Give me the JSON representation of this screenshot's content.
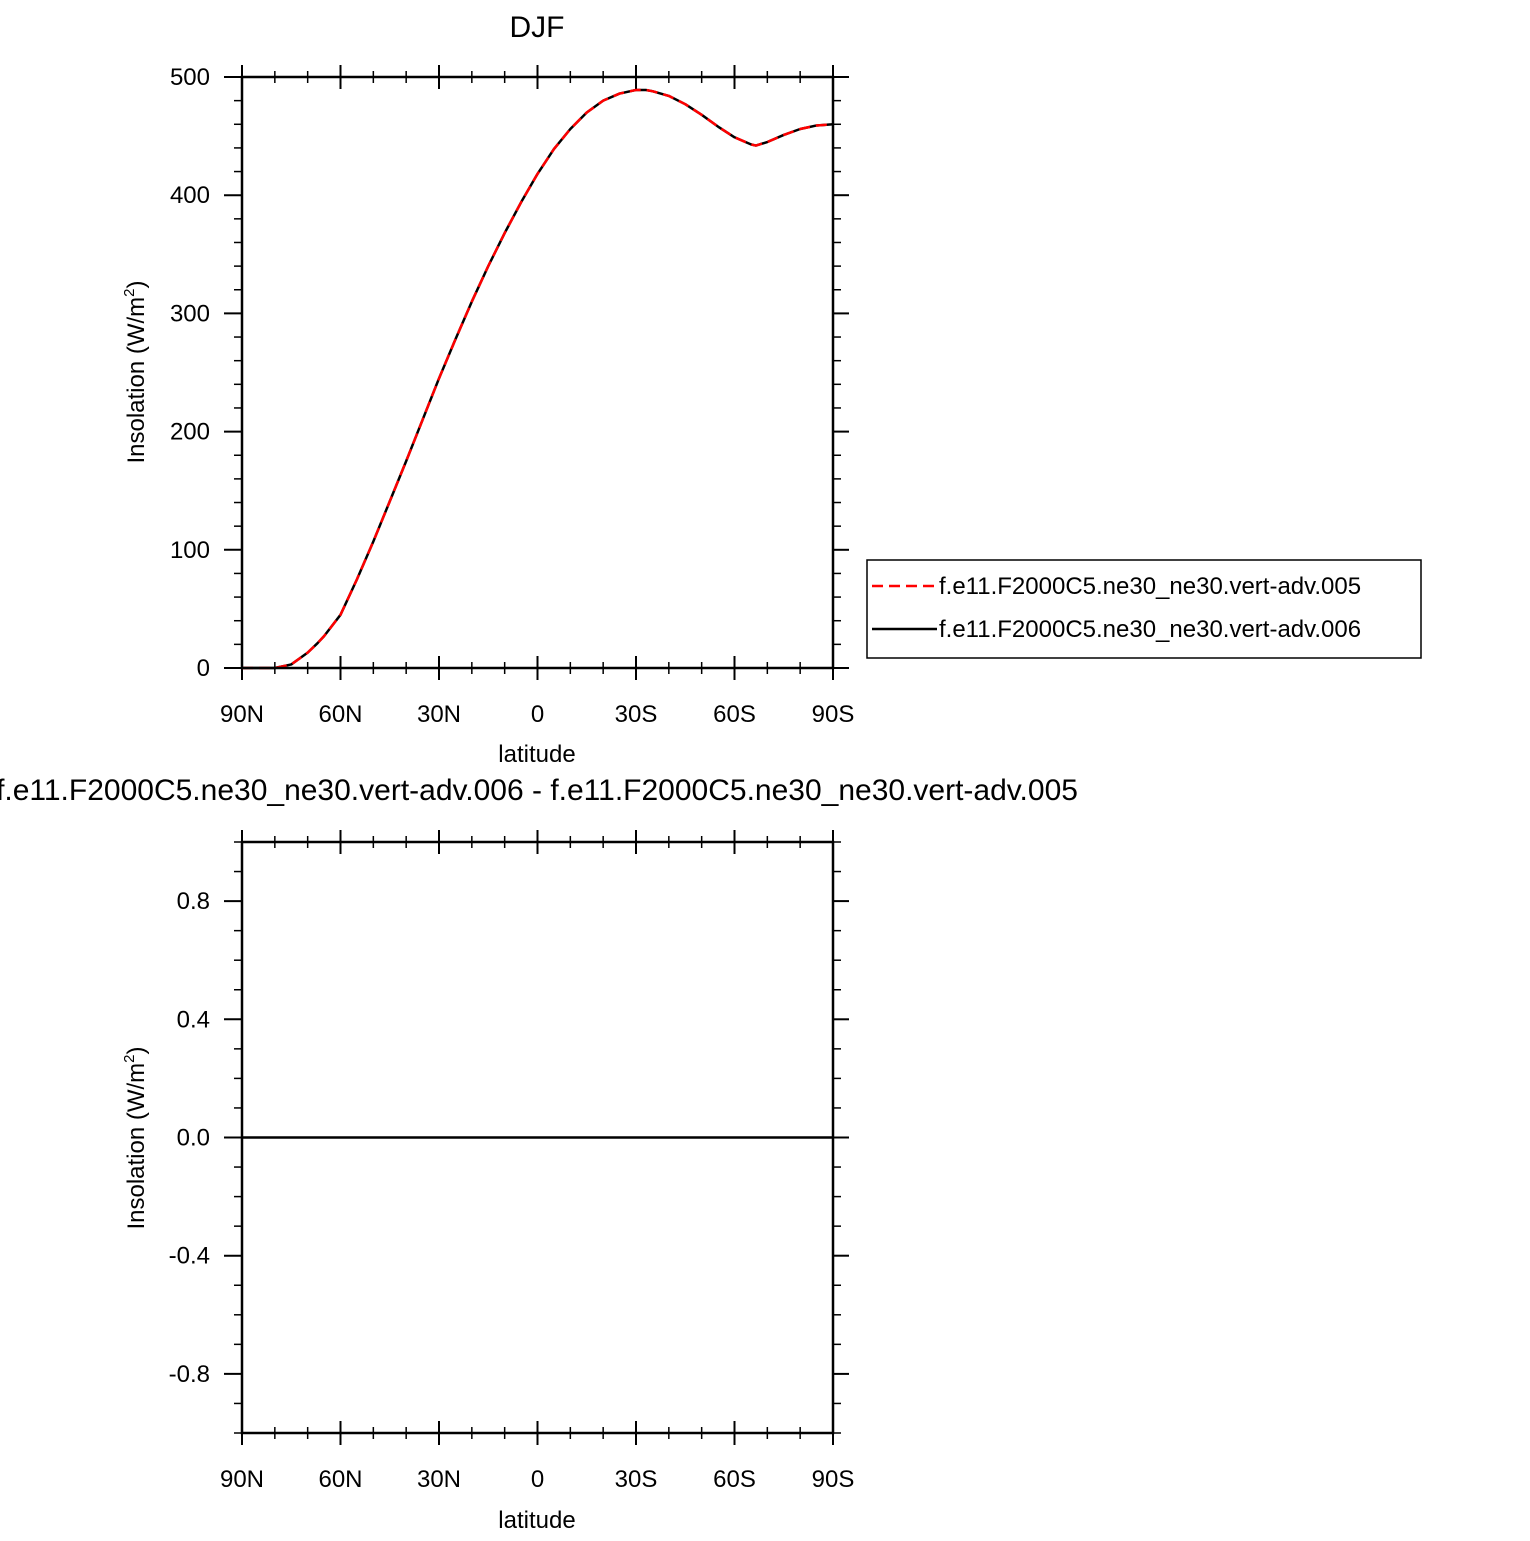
{
  "chart_data": [
    {
      "type": "line",
      "title": "DJF",
      "xlabel": "latitude",
      "ylabel_main": "Insolation (W/m",
      "ylabel_sup": "2",
      "ylabel_close": ")",
      "xlim": [
        90,
        -90
      ],
      "ylim": [
        0,
        500
      ],
      "x_ticks": [
        90,
        60,
        30,
        0,
        -30,
        -60,
        -90
      ],
      "x_tick_labels": [
        "90N",
        "60N",
        "30N",
        "0",
        "30S",
        "60S",
        "90S"
      ],
      "y_ticks": [
        0,
        100,
        200,
        300,
        400,
        500
      ],
      "y_tick_labels": [
        "0",
        "100",
        "200",
        "300",
        "400",
        "500"
      ],
      "x": [
        90,
        85,
        80,
        75,
        70,
        67,
        65,
        60,
        55,
        50,
        45,
        40,
        35,
        30,
        25,
        20,
        15,
        10,
        5,
        0,
        -5,
        -10,
        -15,
        -20,
        -25,
        -30,
        -33,
        -35,
        -40,
        -45,
        -50,
        -55,
        -60,
        -65,
        -66.5,
        -70,
        -75,
        -80,
        -85,
        -90
      ],
      "series": [
        {
          "name": "f.e11.F2000C5.ne30_ne30.vert-adv.005",
          "color": "#ff0000",
          "dash": "dashed",
          "values": [
            0,
            0,
            0,
            3,
            13,
            21,
            27,
            45,
            75,
            107,
            141,
            175,
            210,
            245,
            278,
            310,
            340,
            368,
            394,
            418,
            439,
            456,
            470,
            480,
            486,
            489,
            489,
            488,
            484,
            477,
            468,
            458,
            449,
            443,
            442,
            445,
            451,
            456,
            459,
            460
          ]
        },
        {
          "name": "f.e11.F2000C5.ne30_ne30.vert-adv.006",
          "color": "#000000",
          "dash": "solid",
          "values": [
            0,
            0,
            0,
            3,
            13,
            21,
            27,
            45,
            75,
            107,
            141,
            175,
            210,
            245,
            278,
            310,
            340,
            368,
            394,
            418,
            439,
            456,
            470,
            480,
            486,
            489,
            489,
            488,
            484,
            477,
            468,
            458,
            449,
            443,
            442,
            445,
            451,
            456,
            459,
            460
          ]
        }
      ],
      "legend_position": "right"
    },
    {
      "type": "line",
      "title": "f.e11.F2000C5.ne30_ne30.vert-adv.006 - f.e11.F2000C5.ne30_ne30.vert-adv.005",
      "xlabel": "latitude",
      "ylabel_main": "Insolation (W/m",
      "ylabel_sup": "2",
      "ylabel_close": ")",
      "xlim": [
        90,
        -90
      ],
      "ylim": [
        -1,
        1
      ],
      "x_ticks": [
        90,
        60,
        30,
        0,
        -30,
        -60,
        -90
      ],
      "x_tick_labels": [
        "90N",
        "60N",
        "30N",
        "0",
        "30S",
        "60S",
        "90S"
      ],
      "y_ticks": [
        -0.8,
        -0.4,
        0,
        0.4,
        0.8
      ],
      "y_tick_labels": [
        "-0.8",
        "-0.4",
        "0.0",
        "0.4",
        "0.8"
      ],
      "x": [
        90,
        60,
        30,
        0,
        -30,
        -60,
        -90
      ],
      "series": [
        {
          "color": "#000000",
          "dash": "solid",
          "values": [
            0,
            0,
            0,
            0,
            0,
            0,
            0
          ]
        }
      ]
    }
  ]
}
